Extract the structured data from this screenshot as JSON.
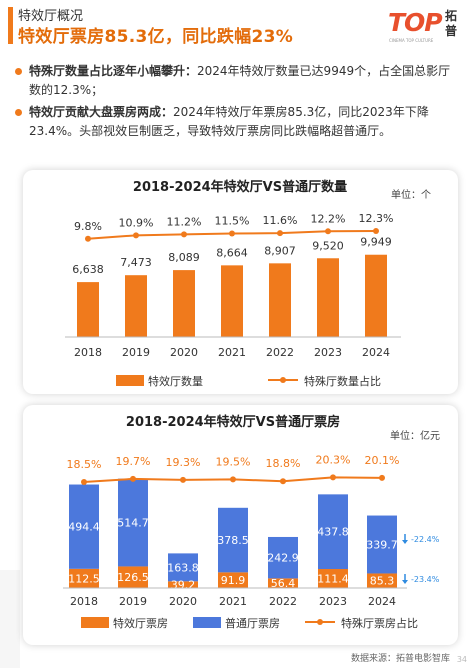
{
  "page": {
    "category": "特效厅概况",
    "title": "特效厅票房85.3亿，同比跌幅23%",
    "logo_text": "TOP",
    "logo_sub": "CINEMA TOP CULTURE",
    "logo_cn": "拓普",
    "source": "数据来源：拓普电影智库",
    "page_number": "34"
  },
  "bullets": [
    {
      "head": "特殊厅数量占比逐年小幅攀升：",
      "body": "2024年特效厅数量已达9949个，占全国总影厅数的12.3%；"
    },
    {
      "head": "特效厅贡献大盘票房两成：",
      "body": "2024年特效厅年票房85.3亿，同比2023年下降23.4%。头部视效巨制匮乏，导致特效厅票房同比跌幅略超普通厅。"
    }
  ],
  "colors": {
    "accent": "#f07a1c",
    "blue": "#4c78dc",
    "line": "#f07a1c"
  },
  "chart_data": [
    {
      "type": "bar",
      "title": "2018-2024年特效厅VS普通厅数量",
      "unit": "单位：个",
      "categories": [
        "2018",
        "2019",
        "2020",
        "2021",
        "2022",
        "2023",
        "2024"
      ],
      "series": [
        {
          "name": "特效厅数量",
          "type": "bar",
          "values": [
            6638,
            7473,
            8089,
            8664,
            8907,
            9520,
            9949
          ]
        },
        {
          "name": "特殊厅数量占比",
          "type": "line",
          "values": [
            9.8,
            10.9,
            11.2,
            11.5,
            11.6,
            12.2,
            12.3
          ]
        }
      ],
      "bar_labels": [
        "6,638",
        "7,473",
        "8,089",
        "8,664",
        "8,907",
        "9,520",
        "9,949"
      ],
      "line_labels": [
        "9.8%",
        "10.9%",
        "11.2%",
        "11.5%",
        "11.6%",
        "12.2%",
        "12.3%"
      ],
      "ylim_bar": [
        0,
        16000
      ],
      "ylim_line": [
        5,
        14
      ],
      "legend": "bottom"
    },
    {
      "type": "bar",
      "stacked": true,
      "title": "2018-2024年特效厅VS普通厅票房",
      "unit": "单位：亿元",
      "categories": [
        "2018",
        "2019",
        "2020",
        "2021",
        "2022",
        "2023",
        "2024"
      ],
      "series": [
        {
          "name": "特效厅票房",
          "type": "bar",
          "values": [
            112.5,
            126.5,
            39.2,
            91.9,
            56.4,
            111.4,
            85.3
          ]
        },
        {
          "name": "普通厅票房",
          "type": "bar",
          "values": [
            494.4,
            514.7,
            163.8,
            378.5,
            242.9,
            437.8,
            339.7
          ]
        },
        {
          "name": "特殊厅票房占比",
          "type": "line",
          "values": [
            18.5,
            19.7,
            19.3,
            19.5,
            18.8,
            20.3,
            20.1
          ]
        }
      ],
      "line_labels": [
        "18.5%",
        "19.7%",
        "19.3%",
        "19.5%",
        "18.8%",
        "20.3%",
        "20.1%"
      ],
      "annotations": [
        "-22.4%",
        "-23.4%"
      ],
      "ylim_bar": [
        0,
        800
      ],
      "ylim_line": [
        10,
        21
      ],
      "legend": "bottom"
    }
  ]
}
